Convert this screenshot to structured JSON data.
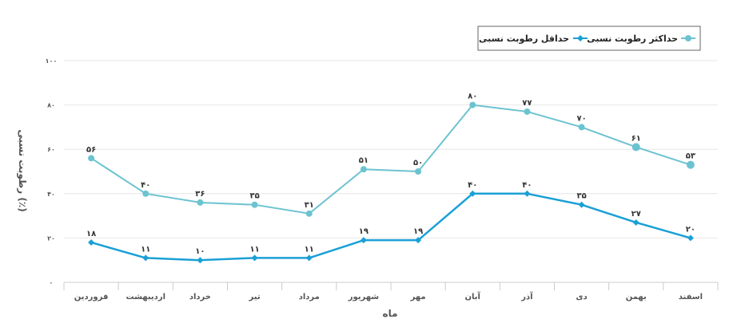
{
  "chart_data": {
    "type": "line",
    "categories": [
      "فروردین",
      "اردیبهشت",
      "خرداد",
      "تیر",
      "مرداد",
      "شهریور",
      "مهر",
      "آبان",
      "آذر",
      "دی",
      "بهمن",
      "اسفند"
    ],
    "series": [
      {
        "name": "حداکثر رطوبت نسبی",
        "values": [
          56,
          40,
          36,
          35,
          31,
          51,
          50,
          80,
          77,
          70,
          61,
          53
        ],
        "labels": [
          "۵۶",
          "۴۰",
          "۳۶",
          "۳۵",
          "۳۱",
          "۵۱",
          "۵۰",
          "۸۰",
          "۷۷",
          "۷۰",
          "۶۱",
          "۵۳"
        ],
        "color": "#6cc3d0",
        "marker": "circle"
      },
      {
        "name": "حداقل رطوبت نسبی",
        "values": [
          18,
          11,
          10,
          11,
          11,
          19,
          19,
          40,
          40,
          35,
          27,
          20
        ],
        "labels": [
          "۱۸",
          "۱۱",
          "۱۰",
          "۱۱",
          "۱۱",
          "۱۹",
          "۱۹",
          "۴۰",
          "۴۰",
          "۳۵",
          "۲۷",
          "۲۰"
        ],
        "color": "#1aa0d6",
        "marker": "diamond"
      }
    ],
    "xlabel": "ماه",
    "ylabel": "رطوبت نسبی (٪)",
    "ylim": [
      0,
      100
    ],
    "yticks": [
      0,
      20,
      40,
      60,
      80,
      100
    ],
    "ytick_labels": [
      "۰",
      "۲۰",
      "۴۰",
      "۶۰",
      "۸۰",
      "۱۰۰"
    ],
    "grid": true,
    "legend_position": "top-right"
  }
}
